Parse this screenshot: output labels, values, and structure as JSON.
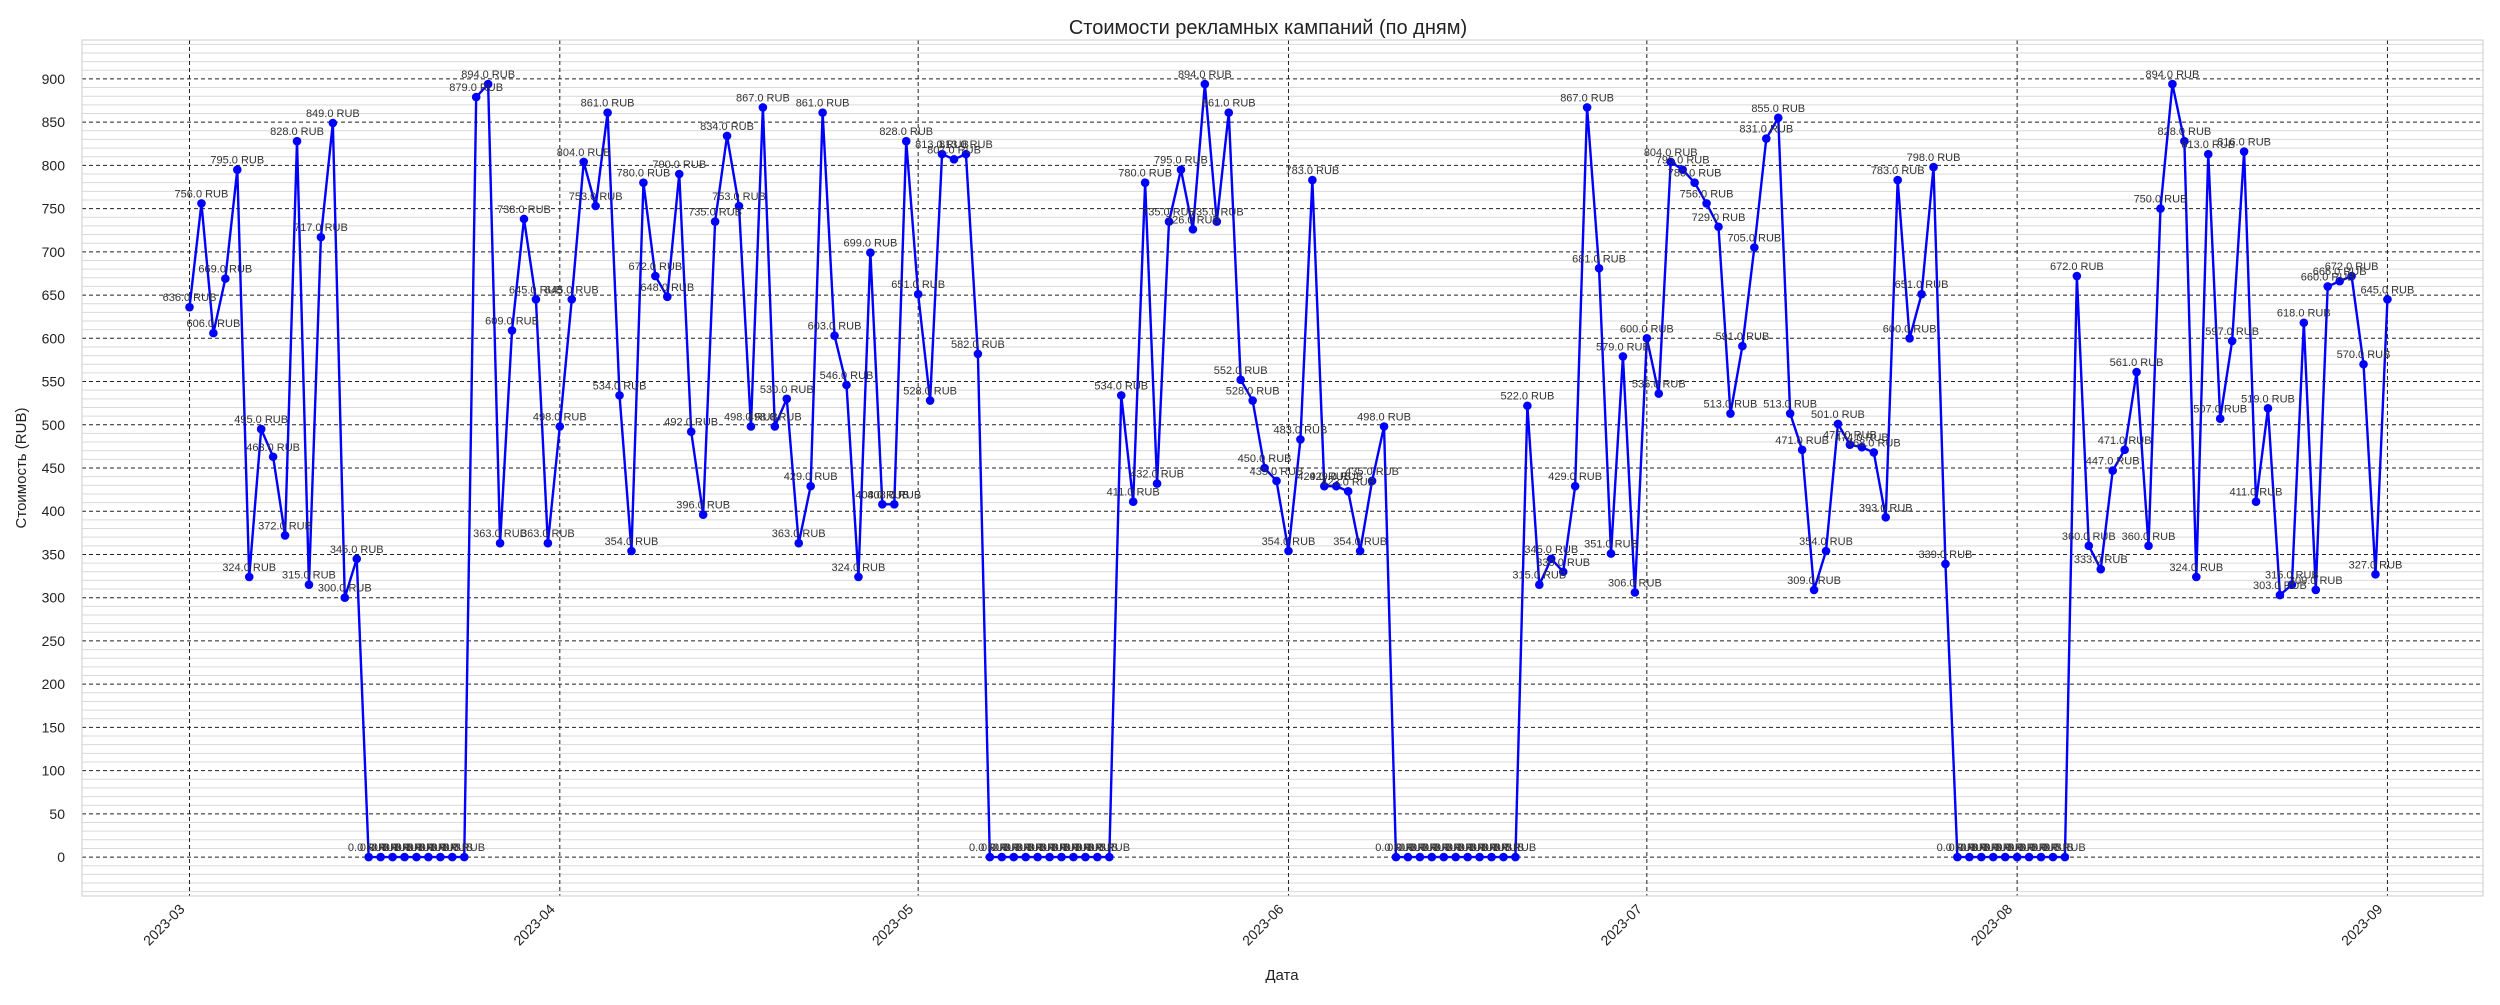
{
  "chart_data": {
    "type": "line",
    "title": "Стоимости рекламных кампаний (по дням)",
    "xlabel": "Дата",
    "ylabel": "Стоимость (RUB)",
    "x_start": "2023-03-01",
    "x_end": "2023-08-31",
    "xlim": [
      "2023-02-20",
      "2023-09-09"
    ],
    "ylim": [
      -45,
      945
    ],
    "x_ticks": [
      "2023-03",
      "2023-04",
      "2023-05",
      "2023-06",
      "2023-07",
      "2023-08",
      "2023-09"
    ],
    "y_ticks": [
      0,
      50,
      100,
      150,
      200,
      250,
      300,
      350,
      400,
      450,
      500,
      550,
      600,
      650,
      700,
      750,
      800,
      850,
      900
    ],
    "grid": true,
    "series": [
      {
        "color": "#0000ff",
        "values": [
          636,
          756,
          606,
          669,
          795,
          324,
          495,
          463,
          372,
          828,
          315,
          717,
          849,
          300,
          345,
          0,
          0,
          0,
          0,
          0,
          0,
          0,
          0,
          0,
          879,
          894,
          363,
          609,
          738,
          645,
          363,
          498,
          645,
          804,
          753,
          861,
          534,
          354,
          780,
          672,
          648,
          790,
          492,
          396,
          735,
          834,
          753,
          498,
          867,
          498,
          530,
          363,
          429,
          861,
          603,
          546,
          324,
          699,
          408,
          408,
          828,
          651,
          528,
          813,
          807,
          813,
          582,
          0,
          0,
          0,
          0,
          0,
          0,
          0,
          0,
          0,
          0,
          0,
          534,
          411,
          780,
          432,
          735,
          795,
          726,
          894,
          735,
          861,
          552,
          528,
          450,
          435,
          354,
          483,
          783,
          429,
          429,
          423,
          354,
          435,
          498,
          0,
          0,
          0,
          0,
          0,
          0,
          0,
          0,
          0,
          0,
          0,
          522,
          315,
          345,
          330,
          429,
          867,
          681,
          351,
          579,
          306,
          600,
          536,
          804,
          795,
          780,
          756,
          729,
          513,
          591,
          705,
          831,
          855,
          513,
          471,
          309,
          354,
          501,
          477,
          474,
          468,
          393,
          783,
          600,
          651,
          798,
          339,
          0,
          0,
          0,
          0,
          0,
          0,
          0,
          0,
          0,
          0,
          672,
          360,
          333,
          447,
          471,
          561,
          360,
          750,
          894,
          828,
          324,
          813,
          507,
          597,
          816,
          411,
          519,
          303,
          315,
          618,
          309,
          660,
          666,
          672,
          570,
          327,
          645
        ]
      }
    ]
  },
  "labels": {
    "suffix": " RUB"
  }
}
